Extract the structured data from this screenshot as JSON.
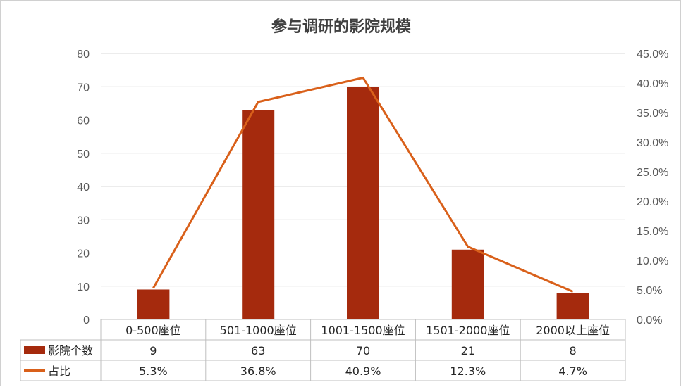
{
  "chart_data": {
    "type": "bar",
    "title": "参与调研的影院规模",
    "categories": [
      "0-500座位",
      "501-1000座位",
      "1001-1500座位",
      "1501-2000座位",
      "2000以上座位"
    ],
    "ylim": [
      0,
      80
    ],
    "y_ticks": [
      0,
      10,
      20,
      30,
      40,
      50,
      60,
      70,
      80
    ],
    "y2lim": [
      0,
      0.45
    ],
    "y2_ticks": [
      "0.0%",
      "5.0%",
      "10.0%",
      "15.0%",
      "20.0%",
      "25.0%",
      "30.0%",
      "35.0%",
      "40.0%",
      "45.0%"
    ],
    "grid": true,
    "series": [
      {
        "name": "影院个数",
        "type": "bar",
        "axis": "left",
        "color": "#A52A0D",
        "values": [
          9,
          63,
          70,
          21,
          8
        ],
        "labels": [
          "9",
          "63",
          "70",
          "21",
          "8"
        ]
      },
      {
        "name": "占比",
        "type": "line",
        "axis": "right",
        "color": "#D9601A",
        "values": [
          0.053,
          0.368,
          0.409,
          0.123,
          0.047
        ],
        "labels": [
          "5.3%",
          "36.8%",
          "40.9%",
          "12.3%",
          "4.7%"
        ]
      }
    ]
  }
}
